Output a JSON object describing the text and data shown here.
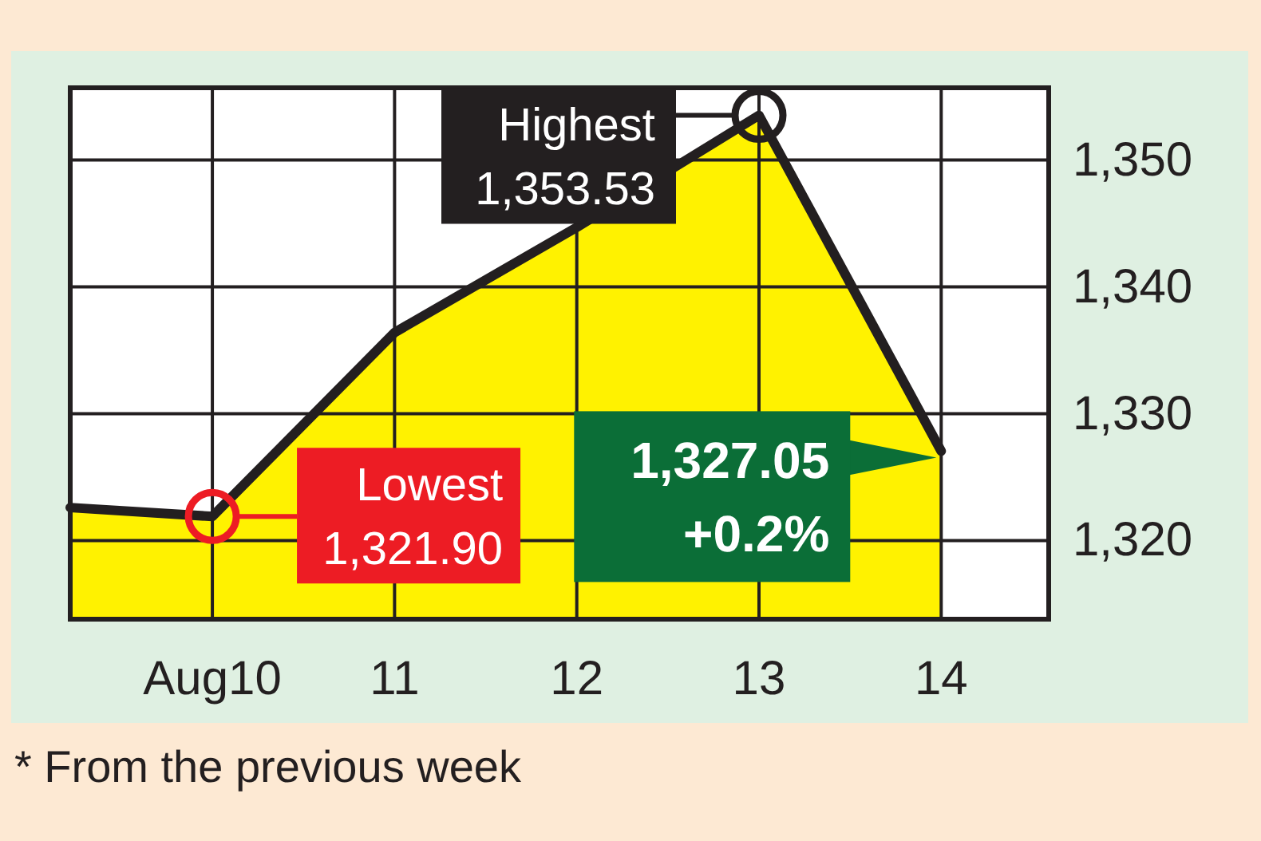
{
  "chart_data": {
    "type": "area",
    "x": [
      9.22,
      10,
      11,
      12,
      13,
      14
    ],
    "values": [
      1322.6,
      1321.9,
      1336.4,
      1344.7,
      1353.53,
      1327.05
    ],
    "color": "#fff200",
    "xlim": [
      9.22,
      14.59
    ],
    "xticks": [
      {
        "value": 10,
        "label": "Aug10"
      },
      11,
      12,
      13,
      14
    ],
    "ylim": [
      1313.8,
      1355.7
    ],
    "yticks": [
      {
        "value": 1320,
        "label": "1,320"
      },
      {
        "value": 1330,
        "label": "1,330"
      },
      {
        "value": 1340,
        "label": "1,340"
      },
      {
        "value": 1350,
        "label": "1,350"
      }
    ],
    "grid": true,
    "annotations": [
      {
        "text": "Highest\n1,353.53",
        "x": 13,
        "y": 1353.53
      },
      {
        "text": "Lowest\n1,321.90",
        "x": 10,
        "y": 1321.9
      },
      {
        "text": "1,327.05\n+0.2%",
        "x": 14,
        "y": 1327.05
      },
      "* From the previous week"
    ]
  }
}
